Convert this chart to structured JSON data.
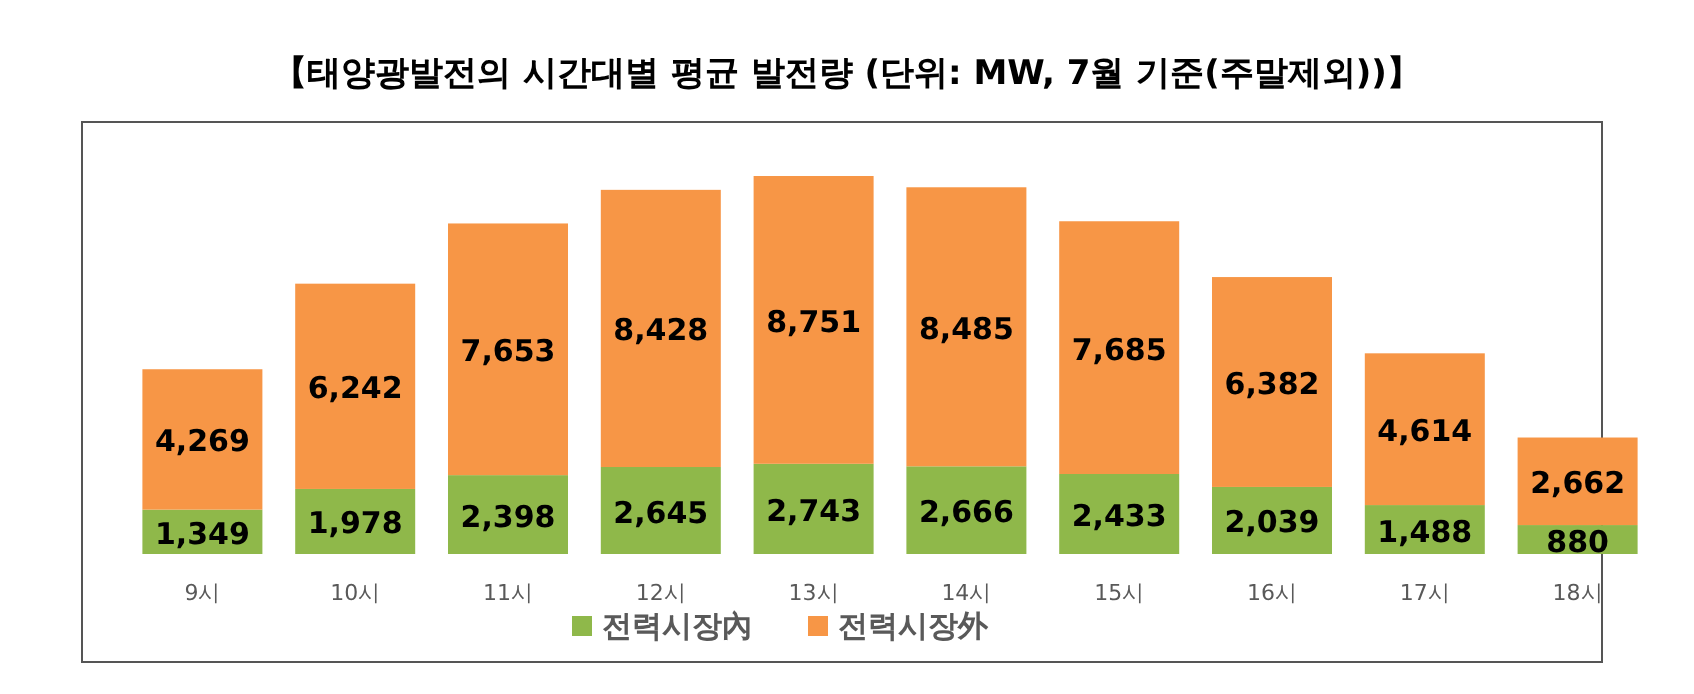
{
  "chart_data": {
    "type": "bar",
    "title": "【태양광발전의 시간대별 평균 발전량 (단위: MW, 7월 기준(주말제외))】",
    "categories": [
      "9시",
      "10시",
      "11시",
      "12시",
      "13시",
      "14시",
      "15시",
      "16시",
      "17시",
      "18시"
    ],
    "stacked": true,
    "legend": "bottom",
    "series": [
      {
        "name": "전력시장內",
        "color": "#8fb84a",
        "values": [
          1349,
          1978,
          2398,
          2645,
          2743,
          2666,
          2433,
          2039,
          1488,
          880
        ],
        "value_labels": [
          "1,349",
          "1,978",
          "2,398",
          "2,645",
          "2,743",
          "2,666",
          "2,433",
          "2,039",
          "1,488",
          "880"
        ]
      },
      {
        "name": "전력시장外",
        "color": "#f79646",
        "values": [
          4269,
          6242,
          7653,
          8428,
          8751,
          8485,
          7685,
          6382,
          4614,
          2662
        ],
        "value_labels": [
          "4,269",
          "6,242",
          "7,653",
          "8,428",
          "8,751",
          "8,485",
          "7,685",
          "6,382",
          "4,614",
          "2,662"
        ]
      }
    ]
  }
}
